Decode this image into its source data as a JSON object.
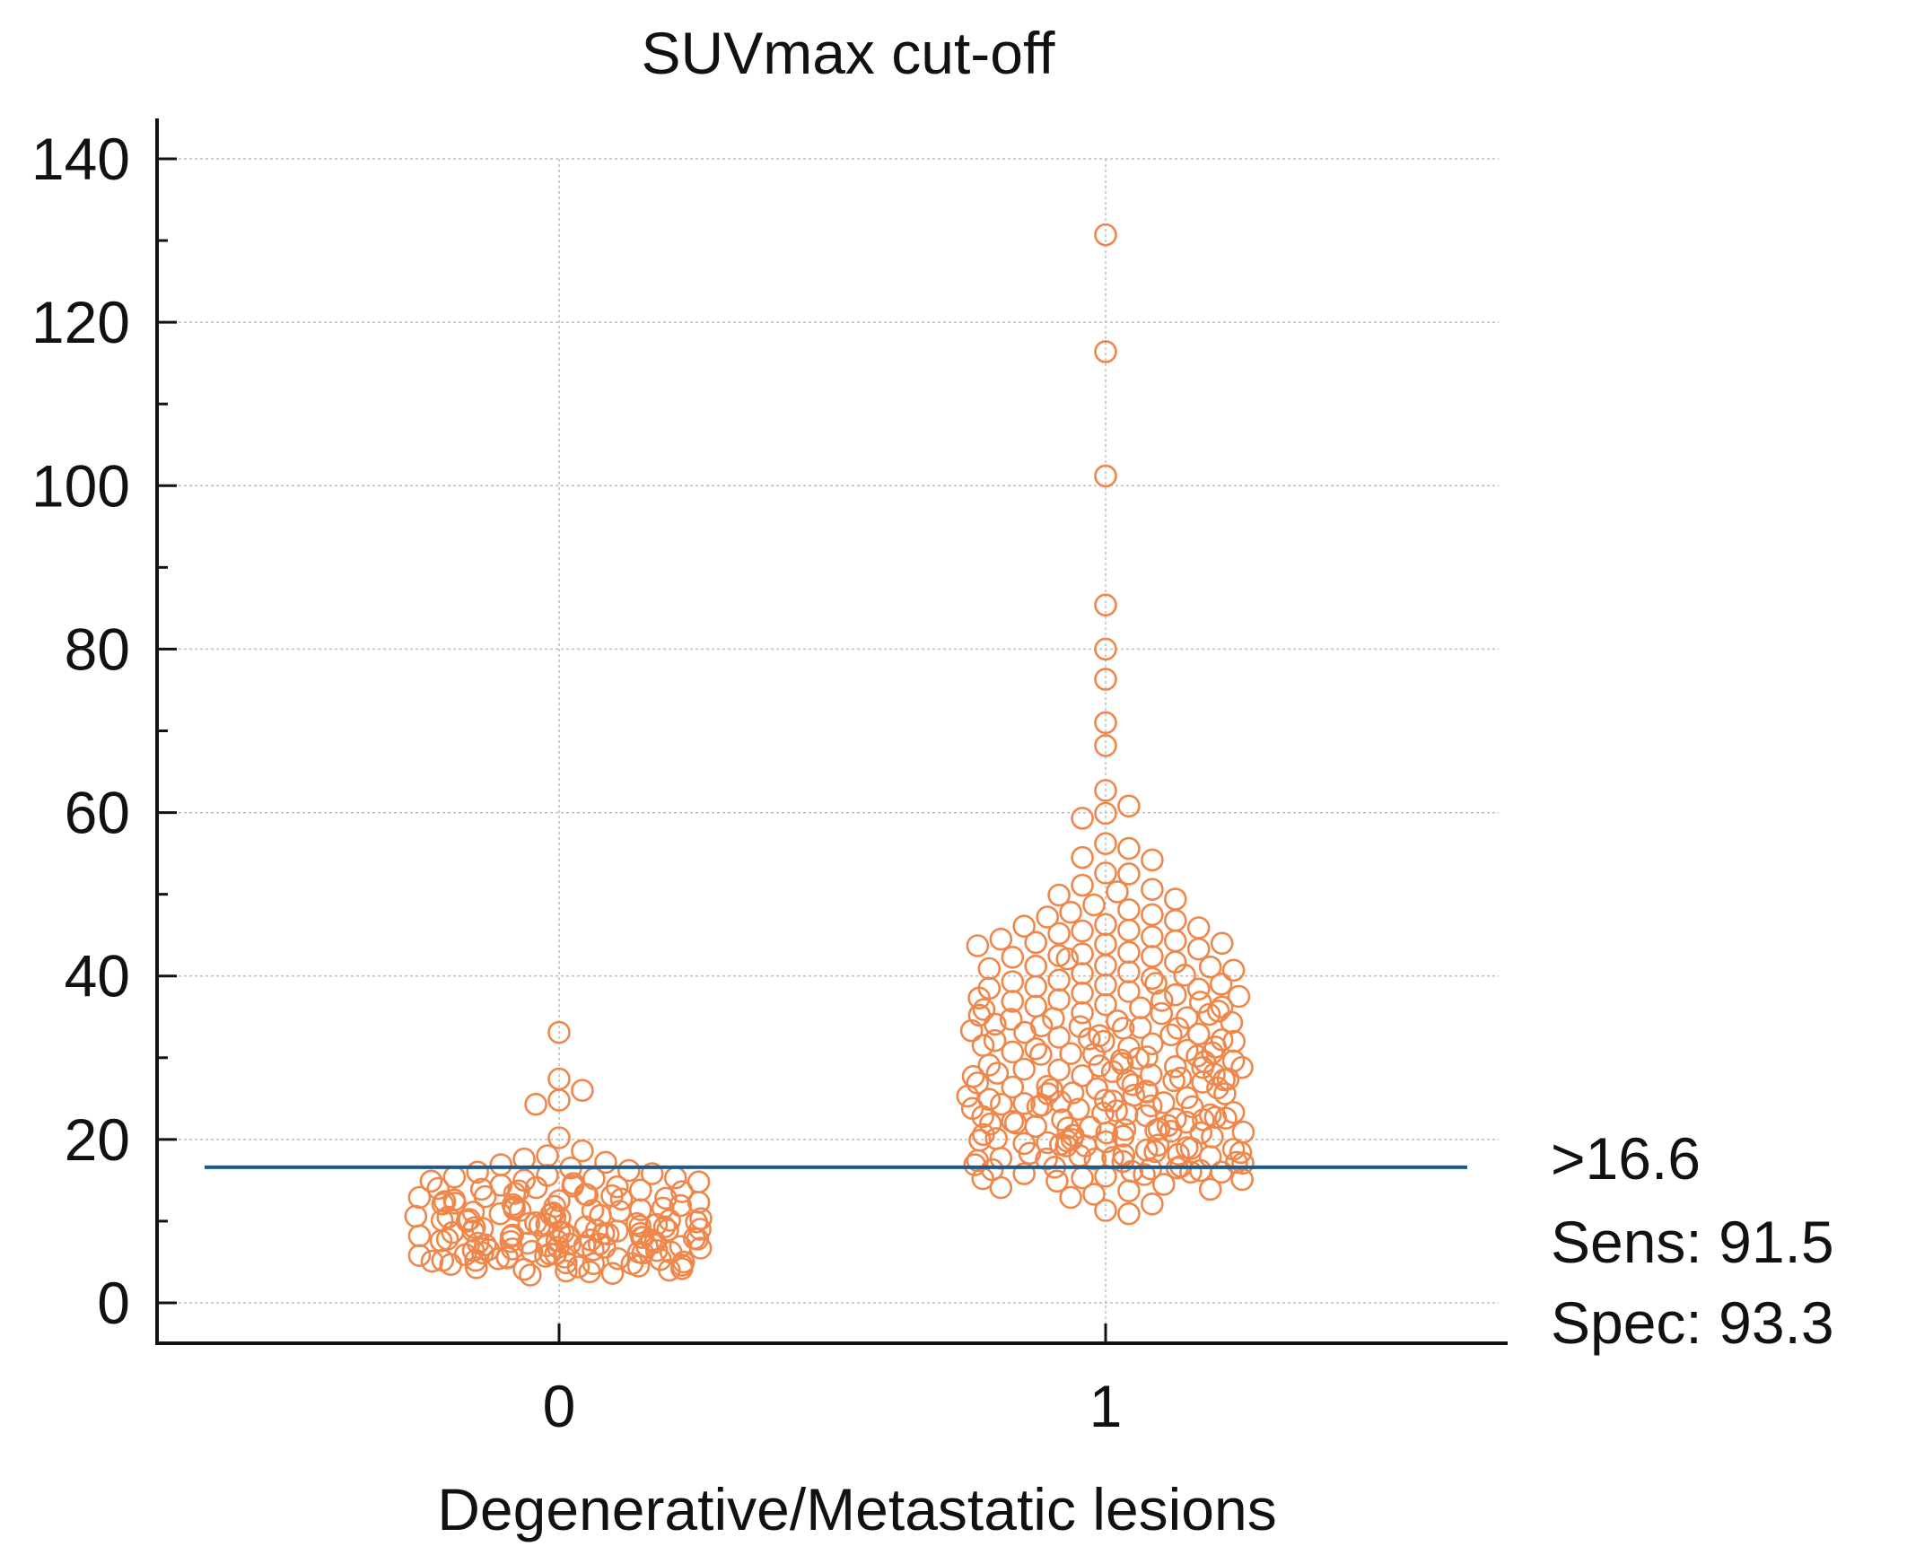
{
  "chart_data": {
    "type": "scatter",
    "subtype": "dot-plot",
    "title": "SUVmax cut-off",
    "xlabel": "Degenerative/Metastatic lesions",
    "ylabel": "",
    "categories": [
      "0",
      "1"
    ],
    "ylim": [
      0,
      140
    ],
    "y_ticks": [
      0,
      20,
      40,
      60,
      80,
      100,
      120,
      140
    ],
    "grid": true,
    "colors": {
      "points": "#f0874a",
      "cutoff_line": "#1d5a8c",
      "axis": "#111111",
      "grid": "#bdbdbd"
    },
    "cutoff": {
      "value": 16.6,
      "label": ">16.6",
      "sens_label": "Sens: 91.5",
      "spec_label": "Spec: 93.3"
    },
    "series": [
      {
        "name": "0",
        "values": [
          33.1,
          27.4,
          26.0,
          24.8,
          24.3,
          20.2,
          18.6,
          18.0,
          17.6,
          17.2,
          16.9,
          16.5,
          16.2,
          16.0,
          15.8,
          15.6,
          15.4,
          15.2,
          15.0,
          14.8,
          14.6,
          14.4,
          14.2,
          14.0,
          13.8,
          13.6,
          13.4,
          13.2,
          13.0,
          12.8,
          12.6,
          12.4,
          12.2,
          12.0,
          11.8,
          11.6,
          11.4,
          11.2,
          11.0,
          10.8,
          10.6,
          10.4,
          10.2,
          10.0,
          9.8,
          9.6,
          9.4,
          9.2,
          9.0,
          8.8,
          8.6,
          8.4,
          8.2,
          8.0,
          7.8,
          7.6,
          7.4,
          7.2,
          7.0,
          6.8,
          6.6,
          6.4,
          6.2,
          6.0,
          5.8,
          5.6,
          5.4,
          5.2,
          5.0,
          4.8,
          4.6,
          4.4,
          4.2,
          4.0,
          3.8,
          3.6,
          3.4,
          13.9,
          13.1,
          12.3,
          11.5,
          10.7,
          9.9,
          9.1,
          8.3,
          7.5,
          6.7,
          5.9,
          5.1,
          4.3,
          12.7,
          11.9,
          11.1,
          10.3,
          9.5,
          8.7,
          7.9,
          7.1,
          6.3,
          5.5,
          4.7,
          3.9,
          11.3,
          10.5,
          9.7,
          8.9,
          8.1,
          7.3,
          6.5,
          5.7,
          4.9,
          4.1,
          10.1,
          9.3,
          8.5,
          7.7,
          6.9,
          6.1,
          5.3,
          4.5,
          9.6,
          8.8,
          8.0,
          7.2,
          6.4,
          5.6,
          4.8,
          8.6,
          7.8,
          7.0,
          6.2,
          5.4,
          7.6,
          6.8,
          6.0,
          5.2,
          12.1,
          11.7,
          11.3,
          10.9,
          10.5,
          10.1,
          9.7,
          9.3,
          8.9,
          8.5,
          8.1,
          7.7,
          7.3,
          6.9,
          6.5,
          6.1,
          14.3,
          13.7,
          13.3,
          12.9,
          12.5,
          15.3,
          14.9,
          14.1
        ]
      },
      {
        "name": "1",
        "values": [
          130.7,
          116.4,
          101.2,
          85.4,
          80.0,
          76.3,
          71.0,
          68.2,
          62.7,
          60.8,
          59.9,
          59.3,
          56.2,
          55.6,
          54.5,
          54.2,
          52.6,
          52.5,
          51.1,
          50.6,
          50.3,
          49.9,
          49.4,
          48.7,
          48.1,
          47.5,
          47.2,
          46.8,
          46.3,
          45.9,
          45.5,
          45.2,
          44.8,
          44.5,
          44.1,
          43.7,
          43.3,
          42.9,
          42.5,
          42.1,
          41.7,
          41.3,
          40.9,
          40.5,
          40.1,
          39.7,
          39.3,
          38.9,
          38.5,
          38.1,
          37.7,
          37.3,
          36.9,
          36.5,
          36.1,
          35.7,
          35.3,
          34.9,
          34.5,
          34.1,
          33.7,
          33.3,
          32.9,
          32.5,
          32.1,
          31.7,
          31.3,
          30.9,
          30.5,
          30.1,
          29.7,
          29.3,
          28.9,
          28.5,
          28.1,
          27.7,
          27.3,
          26.9,
          26.5,
          26.1,
          25.7,
          25.3,
          24.9,
          24.5,
          24.1,
          23.7,
          23.3,
          22.9,
          22.5,
          22.1,
          21.7,
          21.3,
          20.9,
          20.5,
          20.1,
          19.7,
          19.3,
          18.9,
          18.5,
          18.1,
          17.7,
          17.3,
          16.9,
          16.5,
          16.1,
          15.7,
          15.3,
          14.9,
          14.5,
          14.1,
          13.7,
          13.3,
          12.9,
          12.1,
          11.3,
          10.9,
          46.1,
          44.3,
          42.7,
          41.1,
          39.5,
          37.9,
          36.3,
          34.7,
          33.1,
          31.5,
          29.9,
          28.3,
          26.7,
          25.1,
          23.5,
          21.9,
          20.3,
          18.7,
          17.1,
          15.5,
          13.9,
          43.9,
          42.3,
          40.7,
          39.1,
          37.5,
          35.9,
          34.3,
          32.7,
          31.1,
          29.5,
          27.9,
          26.3,
          24.7,
          23.1,
          21.5,
          19.9,
          18.3,
          16.7,
          15.1,
          40.3,
          38.7,
          37.1,
          35.5,
          33.9,
          32.3,
          30.7,
          29.1,
          27.5,
          25.9,
          24.3,
          22.7,
          21.1,
          19.5,
          17.9,
          16.3,
          37.0,
          35.4,
          33.8,
          32.2,
          30.6,
          29.0,
          27.4,
          25.8,
          24.2,
          22.6,
          21.0,
          19.4,
          17.8,
          16.2,
          33.6,
          32.0,
          30.4,
          28.8,
          27.2,
          25.6,
          24.0,
          22.4,
          20.8,
          19.2,
          17.6,
          16.0,
          30.2,
          28.6,
          27.0,
          25.4,
          23.8,
          22.2,
          20.6,
          19.0,
          17.4,
          15.8,
          27.8,
          26.2,
          24.6,
          23.0,
          21.4,
          19.8,
          18.2,
          16.6,
          24.4,
          22.8,
          21.2,
          19.6,
          18.0,
          16.4,
          22.0,
          20.4,
          18.8,
          17.2,
          39.0,
          38.4,
          36.8,
          35.2,
          33.6,
          32.0,
          30.4,
          28.8,
          27.2,
          25.6,
          24.0,
          22.4,
          20.8,
          19.2,
          17.6,
          16.0,
          47.8,
          45.6,
          44.0,
          42.4,
          41.2,
          36.2,
          34.8,
          32.8,
          31.2,
          29.6,
          28.0,
          26.4,
          24.8,
          23.2,
          21.6,
          20.0,
          18.4,
          15.2
        ]
      }
    ]
  }
}
